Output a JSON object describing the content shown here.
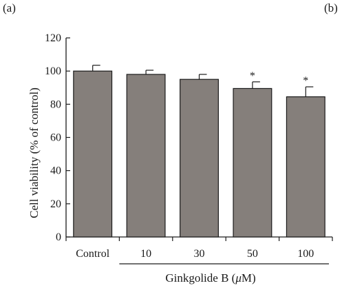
{
  "panel_labels": {
    "a": "(a)",
    "b": "(b)"
  },
  "chart_data": {
    "type": "bar",
    "categories": [
      "Control",
      "10",
      "30",
      "50",
      "100"
    ],
    "values": [
      100,
      98,
      95,
      89.5,
      84.5
    ],
    "errors": [
      3.5,
      2.5,
      3.0,
      4.0,
      6.0
    ],
    "significance": [
      "",
      "",
      "",
      "*",
      "*"
    ],
    "ylabel": "Cell viability (% of control)",
    "xlabel": "Ginkgolide B (μM)",
    "ylim": [
      0,
      120
    ],
    "yticks": [
      0,
      20,
      40,
      60,
      80,
      100,
      120
    ],
    "bar_color": "#857f7b",
    "grid": false
  }
}
